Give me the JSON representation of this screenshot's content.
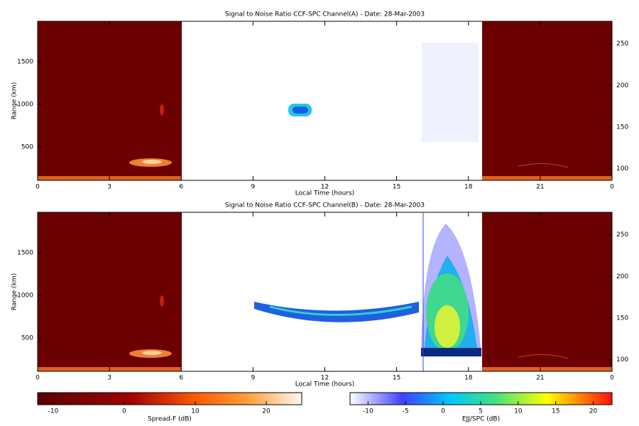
{
  "chart_data": [
    {
      "type": "heatmap",
      "title": "Signal to Noise Ratio CCF-SPC Channel(A) - Date: 28-Mar-2003",
      "xlabel": "Local Time (hours)",
      "ylabel": "Range (km)",
      "xlim": [
        0,
        24
      ],
      "xticks": [
        0,
        3,
        6,
        9,
        12,
        15,
        18,
        21,
        {
          "value": 24,
          "label": "0"
        }
      ],
      "ylim": [
        108,
        1975
      ],
      "yticks": [
        500,
        1000,
        1500
      ],
      "y2lim": [
        86,
        277
      ],
      "y2ticks": [
        100,
        150,
        200,
        250
      ]
    },
    {
      "type": "heatmap",
      "title": "Signal to Noise Ratio CCF-SPC Channel(B) - Date: 28-Mar-2003",
      "xlabel": "Local Time (hours)",
      "ylabel": "Range (km)",
      "xlim": [
        0,
        24
      ],
      "xticks": [
        0,
        3,
        6,
        9,
        12,
        15,
        18,
        21,
        {
          "value": 24,
          "label": "0"
        }
      ],
      "ylim": [
        108,
        1975
      ],
      "yticks": [
        500,
        1000,
        1500
      ],
      "y2lim": [
        86,
        277
      ],
      "y2ticks": [
        100,
        150,
        200,
        250
      ]
    },
    {
      "type": "colorbar",
      "label": "Spread-F (dB)",
      "xlim": [
        -12.2,
        25
      ],
      "xticks": [
        -10,
        0,
        10,
        20
      ]
    },
    {
      "type": "colorbar",
      "label": "EJJ/SPC (dB)",
      "xlim": [
        -12.4,
        22.5
      ],
      "xticks": [
        -10,
        -5,
        0,
        5,
        10,
        15,
        20
      ]
    }
  ]
}
